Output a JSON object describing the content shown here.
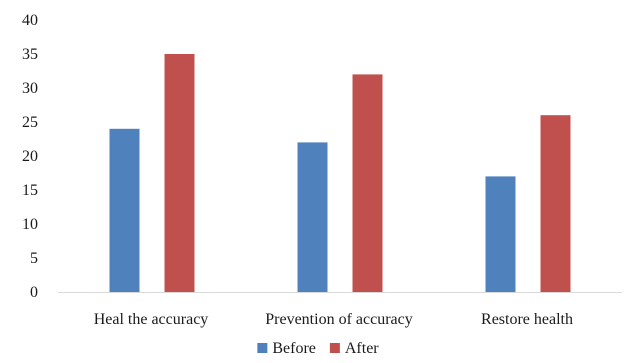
{
  "chart_data": {
    "type": "bar",
    "categories": [
      "Heal the accuracy",
      "Prevention of accuracy",
      "Restore health"
    ],
    "series": [
      {
        "name": "Before",
        "values": [
          24,
          22,
          17
        ],
        "color": "#4f81bd"
      },
      {
        "name": "After",
        "values": [
          35,
          32,
          26
        ],
        "color": "#c0504d"
      }
    ],
    "ylim": [
      0,
      40
    ],
    "yticks": [
      0,
      5,
      10,
      15,
      20,
      25,
      30,
      35,
      40
    ],
    "grid": false,
    "legend_position": "bottom-center",
    "title": "",
    "xlabel": "",
    "ylabel": ""
  }
}
